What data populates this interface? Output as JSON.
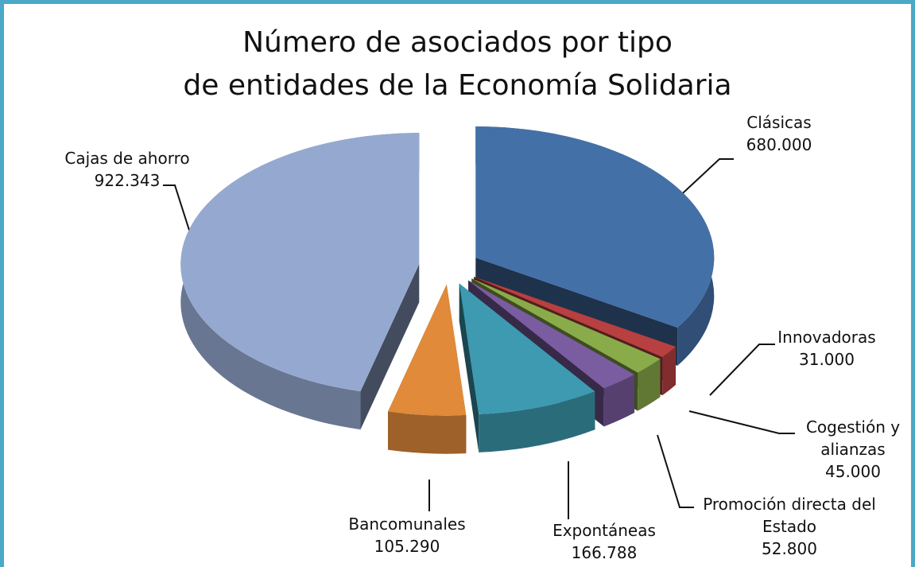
{
  "chart_data": {
    "type": "pie",
    "title": "Número de asociados por tipo\nde entidades de la Economía Solidaria",
    "categories": [
      "Clásicas",
      "Innovadoras",
      "Cogestión y alianzas",
      "Promoción directa del Estado",
      "Expontáneas",
      "Bancomunales",
      "Cajas de ahorro"
    ],
    "values": [
      680000,
      31000,
      45000,
      52800,
      166788,
      105290,
      922343
    ],
    "value_labels": [
      "680.000",
      "31.000",
      "45.000",
      "52.800",
      "166.788",
      "105.290",
      "922.343"
    ],
    "colors": [
      "#4470a8",
      "#b84040",
      "#8aab4a",
      "#7a5ca0",
      "#3d9ab0",
      "#e08a3a",
      "#95a9d0"
    ]
  }
}
